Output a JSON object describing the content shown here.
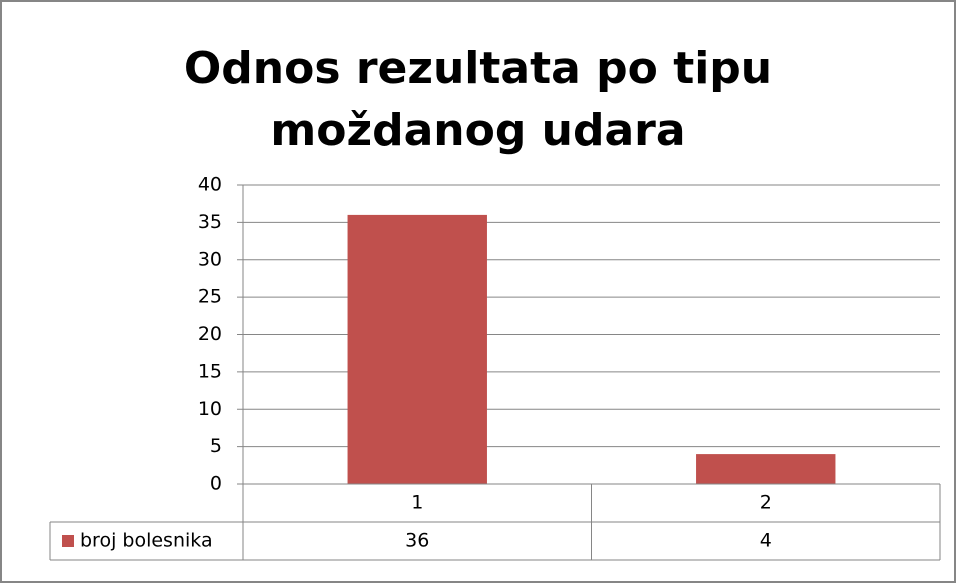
{
  "chart_data": {
    "type": "bar",
    "title": "Odnos rezultata po tipu moždanog udara",
    "categories": [
      "1",
      "2"
    ],
    "series": [
      {
        "name": "broj bolesnika",
        "color": "#c0504d",
        "values": [
          36,
          4
        ]
      }
    ],
    "ylim": [
      0,
      40
    ],
    "yticks": [
      0,
      5,
      10,
      15,
      20,
      25,
      30,
      35,
      40
    ],
    "grid": true,
    "legend": "data-table"
  }
}
